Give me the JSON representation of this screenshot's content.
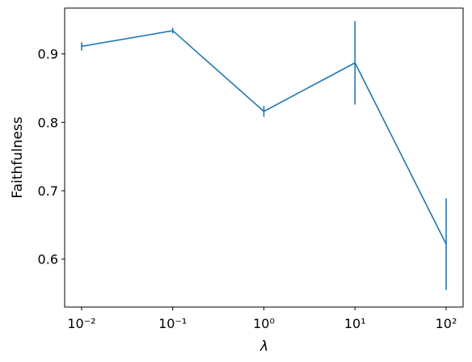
{
  "chart_data": {
    "type": "line",
    "x": [
      0.01,
      0.1,
      1,
      10,
      100
    ],
    "series": [
      {
        "color": "#1f77b4",
        "values": [
          0.911,
          0.934,
          0.816,
          0.887,
          0.622
        ],
        "errors": [
          0.006,
          0.004,
          0.008,
          0.061,
          0.067
        ]
      }
    ],
    "xlabel": "λ",
    "ylabel": "Faithfulness",
    "xscale": "log",
    "xlim": [
      0.00652,
      153.5
    ],
    "ylim": [
      0.53,
      0.967
    ],
    "xticks": [
      {
        "value": 0.01,
        "label": "10⁻²"
      },
      {
        "value": 0.1,
        "label": "10⁻¹"
      },
      {
        "value": 1,
        "label": "10⁰"
      },
      {
        "value": 10,
        "label": "10¹"
      },
      {
        "value": 100,
        "label": "10²"
      }
    ],
    "yticks": [
      0.6,
      0.7,
      0.8,
      0.9
    ]
  }
}
